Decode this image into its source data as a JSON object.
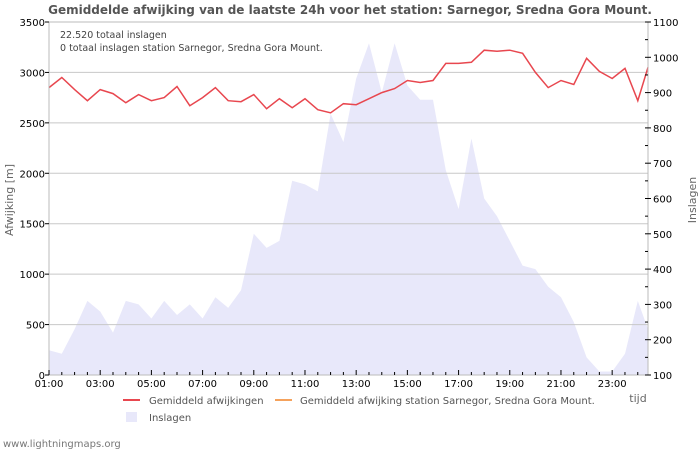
{
  "chart_data": {
    "type": "line",
    "title": "Gemiddelde afwijking van de laatste 24h voor het station: Sarnegor, Sredna Gora Mount.",
    "info_lines": [
      "22.520 totaal inslagen",
      "0 totaal inslagen station Sarnegor, Sredna Gora Mount."
    ],
    "xlabel": "tijd",
    "ylabel": "Afwijking  [m]",
    "y2label": "Inslagen",
    "ylim": [
      0,
      3500
    ],
    "y2lim": [
      100,
      1100
    ],
    "yticks": [
      0,
      500,
      1000,
      1500,
      2000,
      2500,
      3000,
      3500
    ],
    "y2ticks": [
      100,
      200,
      300,
      400,
      500,
      600,
      700,
      800,
      900,
      1000,
      1100
    ],
    "xticks": [
      "01:00",
      "03:00",
      "05:00",
      "07:00",
      "09:00",
      "11:00",
      "13:00",
      "15:00",
      "17:00",
      "19:00",
      "21:00",
      "23:00"
    ],
    "grid": true,
    "legend_position": "bottom",
    "x_hours": [
      1.0,
      1.5,
      2.0,
      2.5,
      3.0,
      3.5,
      4.0,
      4.5,
      5.0,
      5.5,
      6.0,
      6.5,
      7.0,
      7.5,
      8.0,
      8.5,
      9.0,
      9.5,
      10.0,
      10.5,
      11.0,
      11.5,
      12.0,
      12.5,
      13.0,
      13.5,
      14.0,
      14.5,
      15.0,
      15.5,
      16.0,
      16.5,
      17.0,
      17.5,
      18.0,
      18.5,
      19.0,
      19.5,
      20.0,
      20.5,
      21.0,
      21.5,
      22.0,
      22.5,
      23.0,
      23.5,
      24.0,
      24.5
    ],
    "series": [
      {
        "name": "Gemiddeld afwijkingen",
        "axis": "left",
        "color": "#e8474f",
        "kind": "line",
        "values": [
          2850,
          2950,
          2830,
          2720,
          2830,
          2790,
          2700,
          2780,
          2720,
          2750,
          2860,
          2670,
          2750,
          2850,
          2720,
          2710,
          2780,
          2640,
          2740,
          2650,
          2740,
          2630,
          2600,
          2690,
          2680,
          2740,
          2800,
          2840,
          2920,
          2900,
          2920,
          3090,
          3090,
          3100,
          3220,
          3210,
          3220,
          3190,
          3000,
          2850,
          2920,
          2880,
          3140,
          3010,
          2940,
          3040,
          2720,
          3050
        ]
      },
      {
        "name": "Gemiddeld afwijking station Sarnegor, Sredna Gora Mount.",
        "axis": "left",
        "color": "#f5a25c",
        "kind": "line",
        "values": []
      },
      {
        "name": "Inslagen",
        "axis": "right",
        "color": "#e8e8fa",
        "kind": "area",
        "values": [
          170,
          160,
          230,
          310,
          280,
          220,
          310,
          300,
          260,
          310,
          270,
          300,
          260,
          320,
          290,
          340,
          500,
          460,
          480,
          650,
          640,
          620,
          840,
          760,
          940,
          1040,
          900,
          1040,
          920,
          880,
          880,
          680,
          570,
          770,
          600,
          550,
          480,
          410,
          400,
          350,
          320,
          250,
          150,
          110,
          110,
          160,
          310,
          230
        ]
      }
    ]
  },
  "legend": {
    "items": [
      {
        "label": "Gemiddeld afwijkingen",
        "color": "#e8474f",
        "kind": "line"
      },
      {
        "label": "Gemiddeld afwijking station Sarnegor, Sredna Gora Mount.",
        "color": "#f5a25c",
        "kind": "line"
      },
      {
        "label": "Inslagen",
        "color": "#e8e8fa",
        "kind": "area"
      }
    ]
  },
  "footer": "www.lightningmaps.org",
  "colors": {
    "grid": "#c8c8c8",
    "axis": "#bbbbbb",
    "area": "#e8e8fa",
    "line": "#e8474f"
  }
}
